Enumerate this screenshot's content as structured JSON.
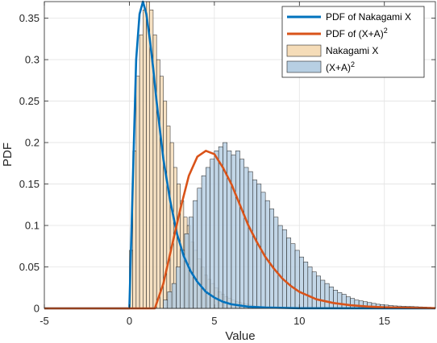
{
  "chart_data": {
    "type": "histogram-with-pdf",
    "xlabel": "Value",
    "ylabel": "PDF",
    "xlim": [
      -5,
      18
    ],
    "ylim": [
      0,
      0.37
    ],
    "xticks": [
      -5,
      0,
      5,
      10,
      15
    ],
    "xtick_labels": [
      "-5",
      "0",
      "5",
      "10",
      "15"
    ],
    "yticks": [
      0,
      0.05,
      0.1,
      0.15,
      0.2,
      0.25,
      0.3,
      0.35
    ],
    "ytick_labels": [
      "0",
      "0.05",
      "0.1",
      "0.15",
      "0.2",
      "0.25",
      "0.3",
      "0.35"
    ],
    "grid": true,
    "legend_position": "top-right",
    "legend": [
      {
        "label": "PDF of Nakagami X",
        "kind": "line",
        "color": "#0072BD"
      },
      {
        "label": "PDF of (X+A)",
        "sup": "2",
        "kind": "line",
        "color": "#D95319"
      },
      {
        "label": "Nakagami X",
        "kind": "patch",
        "color": "#F5DCB8"
      },
      {
        "label": "(X+A)",
        "sup": "2",
        "kind": "patch",
        "color": "#B7CFE3"
      }
    ],
    "series": [
      {
        "name": "Nakagami X",
        "kind": "histogram",
        "bin_start": 0,
        "bin_width": 0.2,
        "color": "#F5DCB8",
        "values": [
          0.07,
          0.19,
          0.28,
          0.33,
          0.36,
          0.37,
          0.36,
          0.33,
          0.3,
          0.28,
          0.25,
          0.22,
          0.2,
          0.17,
          0.15,
          0.13,
          0.11,
          0.1,
          0.08,
          0.07,
          0.06,
          0.05,
          0.04,
          0.035,
          0.03,
          0.025,
          0.02,
          0.017,
          0.014,
          0.012,
          0.01,
          0.008,
          0.007,
          0.006,
          0.005,
          0.004,
          0.003,
          0.0025,
          0.002,
          0.0015,
          0.001
        ]
      },
      {
        "name": "(X+A)^2",
        "kind": "histogram",
        "bin_start": 0,
        "bin_width": 0.25,
        "color": "#B7CFE3",
        "values": [
          0.0,
          0.0,
          0.0,
          0.0,
          0.0,
          0.0,
          0.0,
          0.0,
          0.01,
          0.02,
          0.03,
          0.05,
          0.07,
          0.09,
          0.11,
          0.13,
          0.145,
          0.16,
          0.17,
          0.18,
          0.19,
          0.195,
          0.2,
          0.19,
          0.185,
          0.19,
          0.18,
          0.17,
          0.165,
          0.155,
          0.15,
          0.14,
          0.13,
          0.12,
          0.11,
          0.1,
          0.095,
          0.085,
          0.078,
          0.07,
          0.062,
          0.056,
          0.05,
          0.044,
          0.039,
          0.034,
          0.03,
          0.026,
          0.022,
          0.019,
          0.017,
          0.014,
          0.012,
          0.01,
          0.009,
          0.008,
          0.007,
          0.006,
          0.005,
          0.0045,
          0.004,
          0.0035,
          0.003,
          0.0028,
          0.0026,
          0.0024,
          0.0022,
          0.002,
          0.0018,
          0.0016,
          0.0014,
          0.0012
        ]
      },
      {
        "name": "PDF of Nakagami X",
        "kind": "line",
        "color": "#0072BD",
        "x": [
          -5,
          -0.01,
          0.0,
          0.2,
          0.4,
          0.6,
          0.8,
          1.0,
          1.2,
          1.4,
          1.6,
          1.8,
          2.0,
          2.4,
          2.8,
          3.2,
          3.6,
          4.0,
          4.5,
          5.0,
          5.5,
          6.0,
          7.0,
          8.0,
          10,
          18
        ],
        "y": [
          0,
          0,
          0.0,
          0.15,
          0.3,
          0.355,
          0.37,
          0.355,
          0.325,
          0.29,
          0.25,
          0.215,
          0.18,
          0.13,
          0.09,
          0.063,
          0.045,
          0.032,
          0.02,
          0.013,
          0.008,
          0.005,
          0.002,
          0.001,
          0.0002,
          0
        ]
      },
      {
        "name": "PDF of (X+A)^2",
        "kind": "line",
        "color": "#D95319",
        "x": [
          -5,
          1.5,
          2.0,
          2.5,
          3.0,
          3.5,
          4.0,
          4.5,
          5.0,
          5.5,
          6.0,
          6.5,
          7.0,
          7.5,
          8.0,
          8.5,
          9.0,
          9.5,
          10.0,
          11.0,
          12.0,
          13.0,
          14.0,
          15.0,
          16.0,
          17.0,
          18.0
        ],
        "y": [
          0,
          0,
          0.03,
          0.075,
          0.12,
          0.16,
          0.183,
          0.19,
          0.186,
          0.17,
          0.15,
          0.125,
          0.1,
          0.08,
          0.062,
          0.048,
          0.036,
          0.027,
          0.02,
          0.011,
          0.0065,
          0.0038,
          0.0022,
          0.0013,
          0.0008,
          0.0005,
          0.0003
        ]
      }
    ]
  }
}
